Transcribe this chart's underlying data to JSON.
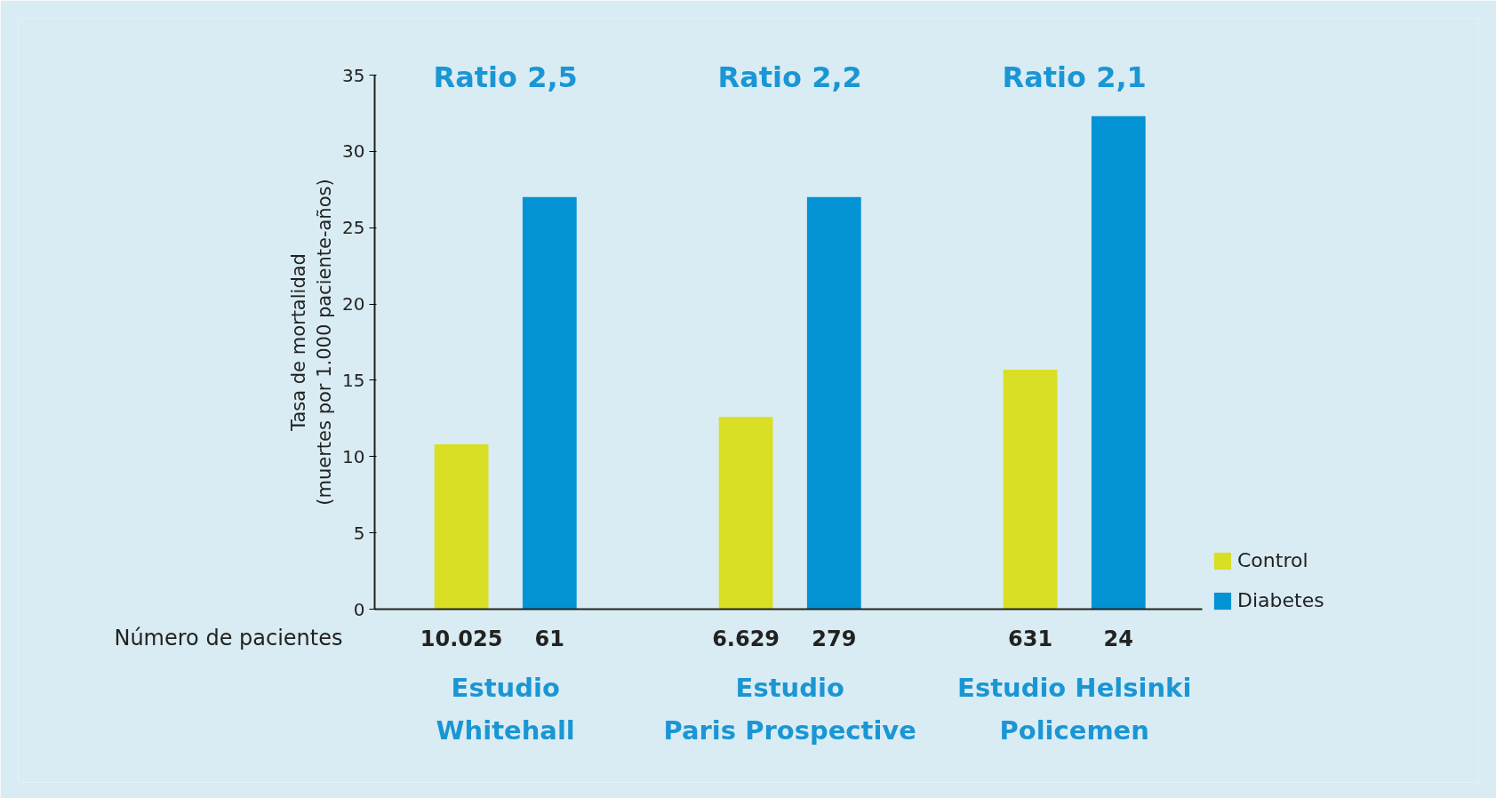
{
  "chart_data": {
    "type": "bar",
    "ylabel": "Tasa de mortalidad\n(muertes por 1.000 paciente-años)",
    "categories": [
      "Estudio\nWhitehall",
      "Estudio\nParis Prospective",
      "Estudio Helsinki\nPolicemen"
    ],
    "series": [
      {
        "name": "Control",
        "color": "#d9df24",
        "values": [
          10.8,
          12.6,
          15.7
        ]
      },
      {
        "name": "Diabetes",
        "color": "#0392d4",
        "values": [
          27.0,
          27.0,
          32.3
        ]
      }
    ],
    "ylim": [
      0,
      35
    ],
    "yticks": [
      0,
      5,
      10,
      15,
      20,
      25,
      30,
      35
    ],
    "grid": false,
    "legend": "right",
    "tick_labels": "y",
    "annotations": [
      "Ratio 2,5",
      "Ratio 2,2",
      "Ratio 2,1",
      "Número de pacientes",
      "10.025",
      "61",
      "6.629",
      "279",
      "631",
      "24"
    ]
  }
}
